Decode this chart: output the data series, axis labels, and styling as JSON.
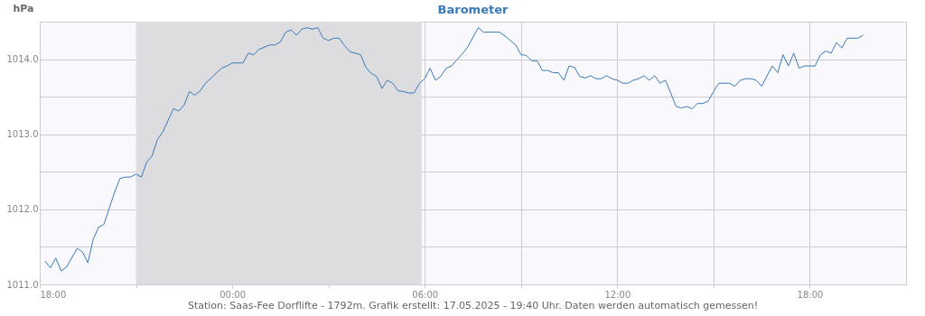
{
  "chart_data": {
    "type": "line",
    "title": "Barometer",
    "ylabel": "hPa",
    "annotations": [
      "Station: Saas-Fee Dorflifte - 1792m. Grafik erstellt: 17.05.2025 - 19:40 Uhr. Daten werden automatisch gemessen!"
    ],
    "x": [
      "2025-05-16T18:10",
      "2025-05-16T18:20",
      "2025-05-16T18:30",
      "2025-05-16T18:40",
      "2025-05-16T18:50",
      "2025-05-16T19:10",
      "2025-05-16T19:20",
      "2025-05-16T19:30",
      "2025-05-16T19:40",
      "2025-05-16T19:50",
      "2025-05-16T20:00",
      "2025-05-16T20:20",
      "2025-05-16T20:30",
      "2025-05-16T20:40",
      "2025-05-16T20:50",
      "2025-05-16T21:00",
      "2025-05-16T21:10",
      "2025-05-16T21:20",
      "2025-05-16T21:30",
      "2025-05-16T21:40",
      "2025-05-16T21:50",
      "2025-05-16T22:10",
      "2025-05-16T22:20",
      "2025-05-16T22:30",
      "2025-05-16T22:40",
      "2025-05-16T22:50",
      "2025-05-16T23:00",
      "2025-05-16T23:10",
      "2025-05-16T23:40",
      "2025-05-16T23:50",
      "2025-05-17T00:00",
      "2025-05-17T00:20",
      "2025-05-17T00:30",
      "2025-05-17T00:40",
      "2025-05-17T00:50",
      "2025-05-17T01:10",
      "2025-05-17T01:20",
      "2025-05-17T01:30",
      "2025-05-17T01:40",
      "2025-05-17T01:50",
      "2025-05-17T02:00",
      "2025-05-17T02:10",
      "2025-05-17T02:20",
      "2025-05-17T02:30",
      "2025-05-17T02:40",
      "2025-05-17T02:50",
      "2025-05-17T03:00",
      "2025-05-17T03:10",
      "2025-05-17T03:20",
      "2025-05-17T03:30",
      "2025-05-17T03:40",
      "2025-05-17T04:00",
      "2025-05-17T04:10",
      "2025-05-17T04:20",
      "2025-05-17T04:30",
      "2025-05-17T04:40",
      "2025-05-17T04:50",
      "2025-05-17T05:00",
      "2025-05-17T05:10",
      "2025-05-17T05:20",
      "2025-05-17T05:30",
      "2025-05-17T05:40",
      "2025-05-17T05:50",
      "2025-05-17T06:00",
      "2025-05-17T06:10",
      "2025-05-17T06:20",
      "2025-05-17T06:30",
      "2025-05-17T06:40",
      "2025-05-17T06:50",
      "2025-05-17T07:00",
      "2025-05-17T07:10",
      "2025-05-17T07:20",
      "2025-05-17T07:40",
      "2025-05-17T07:50",
      "2025-05-17T08:20",
      "2025-05-17T08:30",
      "2025-05-17T08:50",
      "2025-05-17T09:00",
      "2025-05-17T09:10",
      "2025-05-17T09:20",
      "2025-05-17T09:30",
      "2025-05-17T09:40",
      "2025-05-17T09:50",
      "2025-05-17T10:00",
      "2025-05-17T10:10",
      "2025-05-17T10:20",
      "2025-05-17T10:30",
      "2025-05-17T10:40",
      "2025-05-17T10:50",
      "2025-05-17T11:00",
      "2025-05-17T11:10",
      "2025-05-17T11:20",
      "2025-05-17T11:30",
      "2025-05-17T11:40",
      "2025-05-17T11:50",
      "2025-05-17T12:00",
      "2025-05-17T12:10",
      "2025-05-17T12:20",
      "2025-05-17T12:30",
      "2025-05-17T12:40",
      "2025-05-17T12:50",
      "2025-05-17T13:00",
      "2025-05-17T13:10",
      "2025-05-17T13:20",
      "2025-05-17T13:30",
      "2025-05-17T13:40",
      "2025-05-17T13:50",
      "2025-05-17T14:00",
      "2025-05-17T14:10",
      "2025-05-17T14:20",
      "2025-05-17T14:30",
      "2025-05-17T14:40",
      "2025-05-17T14:50",
      "2025-05-17T15:00",
      "2025-05-17T15:10",
      "2025-05-17T15:30",
      "2025-05-17T15:40",
      "2025-05-17T15:50",
      "2025-05-17T16:00",
      "2025-05-17T16:10",
      "2025-05-17T16:20",
      "2025-05-17T16:30",
      "2025-05-17T16:50",
      "2025-05-17T17:00",
      "2025-05-17T17:10",
      "2025-05-17T17:20",
      "2025-05-17T17:30",
      "2025-05-17T17:40",
      "2025-05-17T17:50",
      "2025-05-17T18:10",
      "2025-05-17T18:20",
      "2025-05-17T18:30",
      "2025-05-17T18:40",
      "2025-05-17T18:50",
      "2025-05-17T19:00",
      "2025-05-17T19:10",
      "2025-05-17T19:30",
      "2025-05-17T19:40"
    ],
    "series": [
      {
        "color": "#3a7ab8",
        "values": [
          1011.31,
          1011.22,
          1011.35,
          1011.18,
          1011.23,
          1011.48,
          1011.43,
          1011.29,
          1011.6,
          1011.76,
          1011.8,
          1012.23,
          1012.41,
          1012.43,
          1012.43,
          1012.47,
          1012.43,
          1012.63,
          1012.71,
          1012.93,
          1013.03,
          1013.34,
          1013.31,
          1013.39,
          1013.57,
          1013.52,
          1013.58,
          1013.68,
          1013.88,
          1013.91,
          1013.95,
          1013.95,
          1014.08,
          1014.06,
          1014.13,
          1014.19,
          1014.19,
          1014.23,
          1014.36,
          1014.39,
          1014.32,
          1014.4,
          1014.42,
          1014.4,
          1014.42,
          1014.28,
          1014.25,
          1014.28,
          1014.28,
          1014.18,
          1014.1,
          1014.06,
          1013.89,
          1013.81,
          1013.77,
          1013.61,
          1013.72,
          1013.68,
          1013.58,
          1013.57,
          1013.55,
          1013.55,
          1013.68,
          1013.74,
          1013.88,
          1013.72,
          1013.77,
          1013.88,
          1013.91,
          1013.99,
          1014.07,
          1014.16,
          1014.42,
          1014.36,
          1014.36,
          1014.31,
          1014.19,
          1014.06,
          1014.05,
          1013.98,
          1013.98,
          1013.85,
          1013.85,
          1013.82,
          1013.82,
          1013.72,
          1013.91,
          1013.89,
          1013.77,
          1013.75,
          1013.78,
          1013.74,
          1013.74,
          1013.78,
          1013.74,
          1013.72,
          1013.68,
          1013.68,
          1013.72,
          1013.74,
          1013.78,
          1013.72,
          1013.78,
          1013.68,
          1013.72,
          1013.55,
          1013.37,
          1013.35,
          1013.37,
          1013.34,
          1013.41,
          1013.41,
          1013.44,
          1013.57,
          1013.68,
          1013.68,
          1013.64,
          1013.72,
          1013.74,
          1013.74,
          1013.72,
          1013.64,
          1013.91,
          1013.82,
          1014.06,
          1013.91,
          1014.08,
          1013.88,
          1013.91,
          1013.91,
          1014.06,
          1014.11,
          1014.08,
          1014.22,
          1014.15,
          1014.28,
          1014.28,
          1014.32
        ]
      }
    ],
    "xlim": [
      "2025-05-16T18:00",
      "2025-05-17T21:00"
    ],
    "xticks": [
      {
        "value": "2025-05-16T18:00",
        "label": "18:00"
      },
      {
        "value": "2025-05-16T21:00",
        "label": null
      },
      {
        "value": "2025-05-17T00:00",
        "label": "00:00"
      },
      {
        "value": "2025-05-17T03:00",
        "label": null
      },
      {
        "value": "2025-05-17T06:00",
        "label": "06:00"
      },
      {
        "value": "2025-05-17T09:00",
        "label": null
      },
      {
        "value": "2025-05-17T12:00",
        "label": "12:00"
      },
      {
        "value": "2025-05-17T15:00",
        "label": null
      },
      {
        "value": "2025-05-17T18:00",
        "label": "18:00"
      }
    ],
    "ylim": [
      1011.0,
      1014.5
    ],
    "yticks": [
      {
        "value": 1011,
        "label": "1011.0"
      },
      {
        "value": 1011.5,
        "label": null
      },
      {
        "value": 1012,
        "label": "1012.0"
      },
      {
        "value": 1012.5,
        "label": null
      },
      {
        "value": 1013,
        "label": "1013.0"
      },
      {
        "value": 1013.5,
        "label": null
      },
      {
        "value": 1014,
        "label": "1014.0"
      }
    ],
    "bands": [
      {
        "axis": "x",
        "from": "2025-05-16T21:00",
        "to": "2025-05-17T05:54",
        "color": "#dddde0"
      }
    ],
    "grid": true,
    "marker": "none",
    "line_style": "solid"
  }
}
